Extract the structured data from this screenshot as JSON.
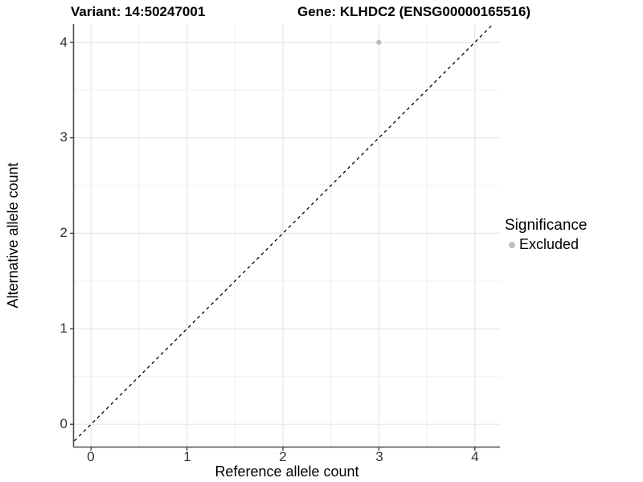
{
  "titles": {
    "variant": "Variant: 14:50247001",
    "gene": "Gene: KLHDC2 (ENSG00000165516)"
  },
  "chart_data": {
    "type": "scatter",
    "title": "Variant: 14:50247001   Gene: KLHDC2 (ENSG00000165516)",
    "xlabel": "Reference allele count",
    "ylabel": "Alternative allele count",
    "x_ticks": [
      0,
      1,
      2,
      3,
      4
    ],
    "y_ticks": [
      0,
      1,
      2,
      3,
      4
    ],
    "x_tick_labels": [
      "0",
      "1",
      "2",
      "3",
      "4"
    ],
    "y_tick_labels": [
      "0",
      "1",
      "2",
      "3",
      "4"
    ],
    "xlim": [
      -0.18,
      4.27
    ],
    "ylim": [
      -0.24,
      4.19
    ],
    "grid": "on",
    "x_gridlines": [
      0,
      0.5,
      1,
      1.5,
      2,
      2.5,
      3,
      3.5,
      4
    ],
    "y_gridlines": [
      0,
      0.5,
      1,
      1.5,
      2,
      2.5,
      3,
      3.5,
      4
    ],
    "identity_line": {
      "style": "dashed",
      "slope": 1,
      "intercept": 0,
      "color": "#000000"
    },
    "series": [
      {
        "name": "Excluded",
        "points": [
          {
            "x": 3,
            "y": 4
          }
        ]
      }
    ],
    "colors": {
      "excluded": "#bebebe",
      "grid_major": "#e6e6e6",
      "grid_minor": "#f1f1f1",
      "axis_line": "#4d4d4d",
      "tick_mark": "#333333"
    },
    "legend": {
      "title": "Significance",
      "position": "right",
      "items": [
        {
          "label": "Excluded",
          "color": "#bebebe"
        }
      ]
    }
  }
}
